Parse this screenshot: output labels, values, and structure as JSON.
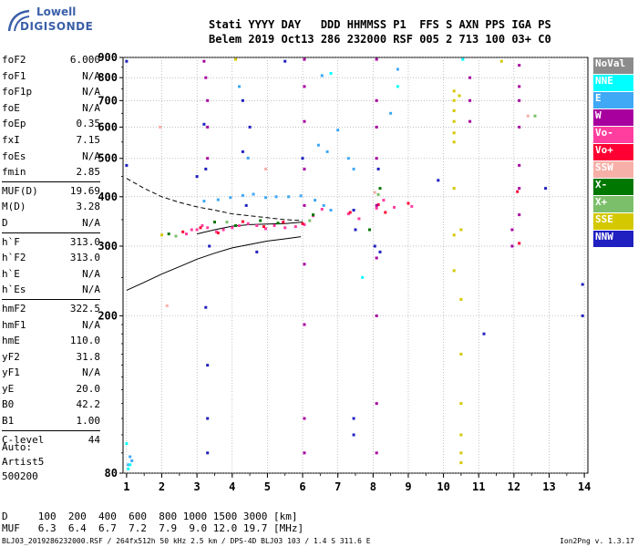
{
  "logo": {
    "line1": "Lowell",
    "line2": "DIGISONDE"
  },
  "header": {
    "row1": "Stati YYYY DAY   DDD HHMMSS P1  FFS S AXN PPS IGA PS",
    "row2": "Belem 2019 Oct13 286 232000 RSF 005 2 713 100 03+ C0"
  },
  "params": [
    [
      {
        "name": "foF2",
        "value": "6.000"
      },
      {
        "name": "foF1",
        "value": "N/A"
      },
      {
        "name": "foF1p",
        "value": "N/A"
      },
      {
        "name": "foE",
        "value": "N/A"
      },
      {
        "name": "foEp",
        "value": "0.35"
      },
      {
        "name": "fxI",
        "value": "7.15"
      },
      {
        "name": "foEs",
        "value": "N/A"
      },
      {
        "name": "fmin",
        "value": "2.85"
      }
    ],
    [
      {
        "name": "MUF(D)",
        "value": "19.69"
      },
      {
        "name": "M(D)",
        "value": "3.28"
      },
      {
        "name": "D",
        "value": "N/A"
      }
    ],
    [
      {
        "name": "h`F",
        "value": "313.0"
      },
      {
        "name": "h`F2",
        "value": "313.0"
      },
      {
        "name": "h`E",
        "value": "N/A"
      },
      {
        "name": "h`Es",
        "value": "N/A"
      }
    ],
    [
      {
        "name": "hmF2",
        "value": "322.5"
      },
      {
        "name": "hmF1",
        "value": "N/A"
      },
      {
        "name": "hmE",
        "value": "110.0"
      },
      {
        "name": "yF2",
        "value": "31.8"
      },
      {
        "name": "yF1",
        "value": "N/A"
      },
      {
        "name": "yE",
        "value": "20.0"
      },
      {
        "name": "B0",
        "value": "42.2"
      },
      {
        "name": "B1",
        "value": "1.00"
      }
    ],
    [
      {
        "name": "C-level",
        "value": "44"
      }
    ]
  ],
  "auto": {
    "line1": "Auto:",
    "line2": "Artist5",
    "line3": "500200"
  },
  "legend": [
    {
      "label": "NoVal",
      "color": "#8c8c8c"
    },
    {
      "label": "NNE",
      "color": "#00ffff"
    },
    {
      "label": "E",
      "color": "#3fa9f5"
    },
    {
      "label": "W",
      "color": "#a8009f"
    },
    {
      "label": "Vo-",
      "color": "#ff3ea0"
    },
    {
      "label": "Vo+",
      "color": "#ff0033"
    },
    {
      "label": "SSW",
      "color": "#f7b0a8"
    },
    {
      "label": "X-",
      "color": "#007700"
    },
    {
      "label": "X+",
      "color": "#7bbf6a"
    },
    {
      "label": "SSE",
      "color": "#d4c800"
    },
    {
      "label": "NNW",
      "color": "#2020c0"
    }
  ],
  "muf_table": {
    "d_label": "D",
    "d_values": "100  200  400  600  800 1000 1500 3000 [km]",
    "muf_label": "MUF",
    "muf_values": "6.3  6.4  6.7  7.2  7.9  9.0 12.0 19.7 [MHz]"
  },
  "footer": {
    "left": "BLJ03_2019286232000.RSF / 264fx512h 50 kHz 2.5 km / DPS-4D BLJ03 103 / 1.4 S 311.6 E",
    "right": "Ion2Png v. 1.3.17"
  },
  "chart_data": {
    "type": "scatter",
    "x_ticks": [
      1,
      2,
      3,
      4,
      5,
      6,
      7,
      8,
      9,
      10,
      11,
      12,
      13,
      14
    ],
    "y_ticks": [
      80,
      200,
      300,
      400,
      500,
      600,
      700,
      800,
      900
    ],
    "xlim": [
      0.9,
      14.1
    ],
    "ylim": [
      80,
      900
    ],
    "y_scale": "log",
    "grid": true,
    "series": [
      {
        "name": "Vo-",
        "color": "#ff3ea0",
        "points": [
          [
            2.7,
            322
          ],
          [
            2.85,
            330
          ],
          [
            3.0,
            330
          ],
          [
            3.15,
            338
          ],
          [
            3.3,
            334
          ],
          [
            3.55,
            326
          ],
          [
            3.75,
            330
          ],
          [
            4.0,
            334
          ],
          [
            4.2,
            338
          ],
          [
            4.45,
            342
          ],
          [
            4.7,
            338
          ],
          [
            4.95,
            332
          ],
          [
            5.2,
            338
          ],
          [
            5.5,
            334
          ],
          [
            5.8,
            336
          ],
          [
            6.05,
            340
          ],
          [
            6.3,
            358
          ],
          [
            6.55,
            372
          ],
          [
            7.3,
            362
          ],
          [
            7.6,
            352
          ],
          [
            8.1,
            374
          ],
          [
            8.3,
            392
          ],
          [
            8.6,
            376
          ],
          [
            9.1,
            378
          ]
        ]
      },
      {
        "name": "Vo+",
        "color": "#ff0033",
        "points": [
          [
            2.6,
            326
          ],
          [
            3.1,
            334
          ],
          [
            3.6,
            324
          ],
          [
            4.3,
            346
          ],
          [
            4.9,
            336
          ],
          [
            5.45,
            345
          ],
          [
            6.0,
            342
          ],
          [
            7.35,
            365
          ],
          [
            8.15,
            382
          ],
          [
            8.35,
            365
          ],
          [
            9.0,
            385
          ],
          [
            12.1,
            412
          ],
          [
            12.15,
            305
          ]
        ]
      },
      {
        "name": "E",
        "color": "#3fa9f5",
        "points": [
          [
            3.2,
            390
          ],
          [
            3.6,
            393
          ],
          [
            3.95,
            398
          ],
          [
            4.3,
            403
          ],
          [
            4.6,
            406
          ],
          [
            4.95,
            398
          ],
          [
            5.25,
            400
          ],
          [
            5.6,
            400
          ],
          [
            5.95,
            402
          ],
          [
            6.35,
            392
          ],
          [
            6.6,
            380
          ],
          [
            6.8,
            370
          ],
          [
            6.45,
            540
          ],
          [
            6.7,
            520
          ],
          [
            4.45,
            501
          ],
          [
            4.2,
            760
          ],
          [
            6.55,
            810
          ],
          [
            7.0,
            590
          ],
          [
            7.3,
            500
          ],
          [
            7.45,
            470
          ],
          [
            8.5,
            650
          ],
          [
            8.7,
            840
          ],
          [
            1.05,
            84
          ],
          [
            1.1,
            88
          ],
          [
            1.15,
            86
          ]
        ]
      },
      {
        "name": "W",
        "color": "#a8009f",
        "points": [
          [
            3.2,
            880
          ],
          [
            3.25,
            800
          ],
          [
            3.3,
            700
          ],
          [
            3.3,
            600
          ],
          [
            3.3,
            500
          ],
          [
            6.05,
            890
          ],
          [
            6.05,
            760
          ],
          [
            6.05,
            620
          ],
          [
            6.05,
            470
          ],
          [
            6.05,
            380
          ],
          [
            6.05,
            270
          ],
          [
            6.05,
            190
          ],
          [
            6.05,
            110
          ],
          [
            6.05,
            90
          ],
          [
            8.1,
            890
          ],
          [
            8.1,
            700
          ],
          [
            8.1,
            600
          ],
          [
            8.1,
            500
          ],
          [
            8.1,
            380
          ],
          [
            8.1,
            280
          ],
          [
            8.1,
            200
          ],
          [
            8.1,
            120
          ],
          [
            8.1,
            90
          ],
          [
            10.75,
            800
          ],
          [
            10.75,
            700
          ],
          [
            10.75,
            620
          ],
          [
            12.15,
            860
          ],
          [
            12.15,
            760
          ],
          [
            12.15,
            700
          ],
          [
            12.15,
            600
          ],
          [
            12.15,
            480
          ],
          [
            12.15,
            420
          ],
          [
            12.15,
            360
          ],
          [
            11.95,
            330
          ],
          [
            11.95,
            300
          ]
        ]
      },
      {
        "name": "X-",
        "color": "#007700",
        "points": [
          [
            2.2,
            322
          ],
          [
            3.5,
            345
          ],
          [
            4.1,
            338
          ],
          [
            4.8,
            348
          ],
          [
            5.3,
            343
          ],
          [
            6.3,
            360
          ],
          [
            8.2,
            420
          ],
          [
            7.9,
            330
          ]
        ]
      },
      {
        "name": "X+",
        "color": "#7bbf6a",
        "points": [
          [
            2.4,
            318
          ],
          [
            3.85,
            345
          ],
          [
            6.2,
            348
          ],
          [
            8.15,
            405
          ],
          [
            12.6,
            640
          ]
        ]
      },
      {
        "name": "SSW",
        "color": "#f7b0a8",
        "points": [
          [
            2.15,
            212
          ],
          [
            1.95,
            600
          ],
          [
            4.95,
            470
          ],
          [
            8.05,
            410
          ],
          [
            12.4,
            640
          ]
        ]
      },
      {
        "name": "SSE",
        "color": "#d4c800",
        "points": [
          [
            10.3,
            740
          ],
          [
            10.3,
            700
          ],
          [
            10.3,
            660
          ],
          [
            10.3,
            620
          ],
          [
            10.3,
            580
          ],
          [
            10.3,
            550
          ],
          [
            10.3,
            420
          ],
          [
            10.3,
            320
          ],
          [
            10.3,
            260
          ],
          [
            10.5,
            330
          ],
          [
            10.5,
            220
          ],
          [
            10.5,
            160
          ],
          [
            10.5,
            120
          ],
          [
            10.5,
            100
          ],
          [
            10.5,
            90
          ],
          [
            10.5,
            85
          ],
          [
            10.45,
            720
          ],
          [
            2.0,
            320
          ],
          [
            11.65,
            880
          ],
          [
            4.1,
            890
          ]
        ]
      },
      {
        "name": "NNW",
        "color": "#2020c0",
        "points": [
          [
            1.0,
            880
          ],
          [
            1.0,
            480
          ],
          [
            3.2,
            610
          ],
          [
            3.25,
            470
          ],
          [
            3.25,
            210
          ],
          [
            3.3,
            150
          ],
          [
            3.3,
            110
          ],
          [
            3.3,
            90
          ],
          [
            3.35,
            300
          ],
          [
            3.0,
            450
          ],
          [
            4.3,
            700
          ],
          [
            4.5,
            600
          ],
          [
            4.3,
            520
          ],
          [
            4.7,
            290
          ],
          [
            4.4,
            380
          ],
          [
            5.5,
            880
          ],
          [
            6.0,
            500
          ],
          [
            7.45,
            370
          ],
          [
            7.5,
            330
          ],
          [
            7.45,
            110
          ],
          [
            7.45,
            100
          ],
          [
            8.05,
            300
          ],
          [
            8.15,
            470
          ],
          [
            8.2,
            290
          ],
          [
            9.85,
            440
          ],
          [
            11.15,
            180
          ],
          [
            12.9,
            420
          ],
          [
            13.95,
            200
          ],
          [
            13.95,
            240
          ]
        ]
      },
      {
        "name": "NNE",
        "color": "#00ffff",
        "points": [
          [
            1.05,
            82
          ],
          [
            1.1,
            84
          ],
          [
            1.0,
            95
          ],
          [
            10.55,
            890
          ],
          [
            8.7,
            760
          ],
          [
            6.8,
            820
          ],
          [
            7.7,
            250
          ]
        ]
      }
    ],
    "curves": [
      {
        "style": "solid",
        "points": [
          [
            1.0,
            232
          ],
          [
            1.5,
            243
          ],
          [
            2.0,
            255
          ],
          [
            2.5,
            266
          ],
          [
            3.0,
            278
          ],
          [
            3.5,
            288
          ],
          [
            4.0,
            297
          ],
          [
            4.5,
            303
          ],
          [
            5.0,
            309
          ],
          [
            5.5,
            313
          ],
          [
            5.95,
            317
          ]
        ]
      },
      {
        "style": "solid",
        "points": [
          [
            3.0,
            322
          ],
          [
            3.5,
            330
          ],
          [
            4.0,
            337
          ],
          [
            4.5,
            340
          ],
          [
            5.0,
            341
          ],
          [
            5.5,
            342
          ],
          [
            6.0,
            345
          ]
        ]
      },
      {
        "style": "dashed",
        "points": [
          [
            1.0,
            445
          ],
          [
            1.5,
            420
          ],
          [
            2.0,
            400
          ],
          [
            2.5,
            387
          ],
          [
            3.0,
            377
          ],
          [
            3.5,
            370
          ],
          [
            4.0,
            362
          ],
          [
            4.5,
            358
          ],
          [
            5.0,
            354
          ],
          [
            5.5,
            350
          ],
          [
            6.0,
            348
          ]
        ]
      }
    ]
  }
}
